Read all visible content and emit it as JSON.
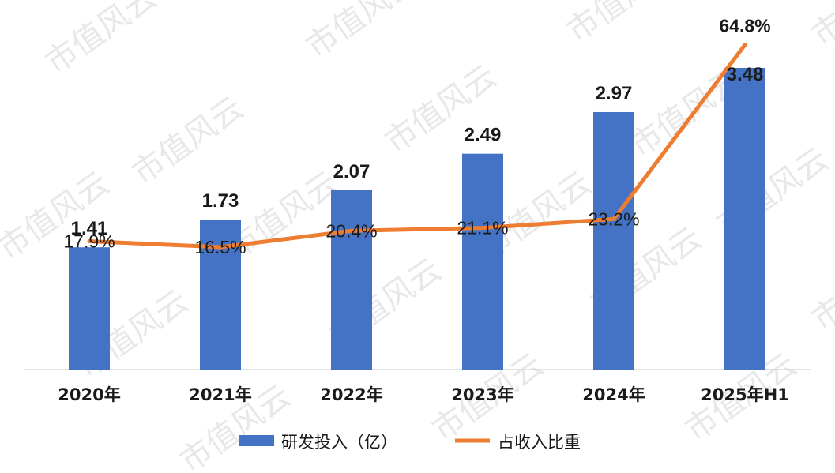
{
  "chart_data": {
    "type": "bar+line",
    "categories": [
      "2020年",
      "2021年",
      "2022年",
      "2023年",
      "2024年",
      "2025年H1"
    ],
    "series": [
      {
        "name": "研发投入（亿）",
        "type": "bar",
        "values": [
          1.41,
          1.73,
          2.07,
          2.49,
          2.97,
          3.48
        ],
        "labels": [
          "1.41",
          "1.73",
          "2.07",
          "2.49",
          "2.97",
          "3.48"
        ],
        "color": "#4472C4"
      },
      {
        "name": "占收入比重",
        "type": "line",
        "values": [
          17.9,
          16.5,
          20.4,
          21.1,
          23.2,
          64.8
        ],
        "labels": [
          "17.9%",
          "16.5%",
          "20.4%",
          "21.1%",
          "23.2%",
          "64.8%"
        ],
        "color": "#ED7D31"
      }
    ],
    "legend_position": "bottom",
    "grid": false
  },
  "watermark": {
    "text": "市值风云",
    "color": "#e8e8e8"
  }
}
